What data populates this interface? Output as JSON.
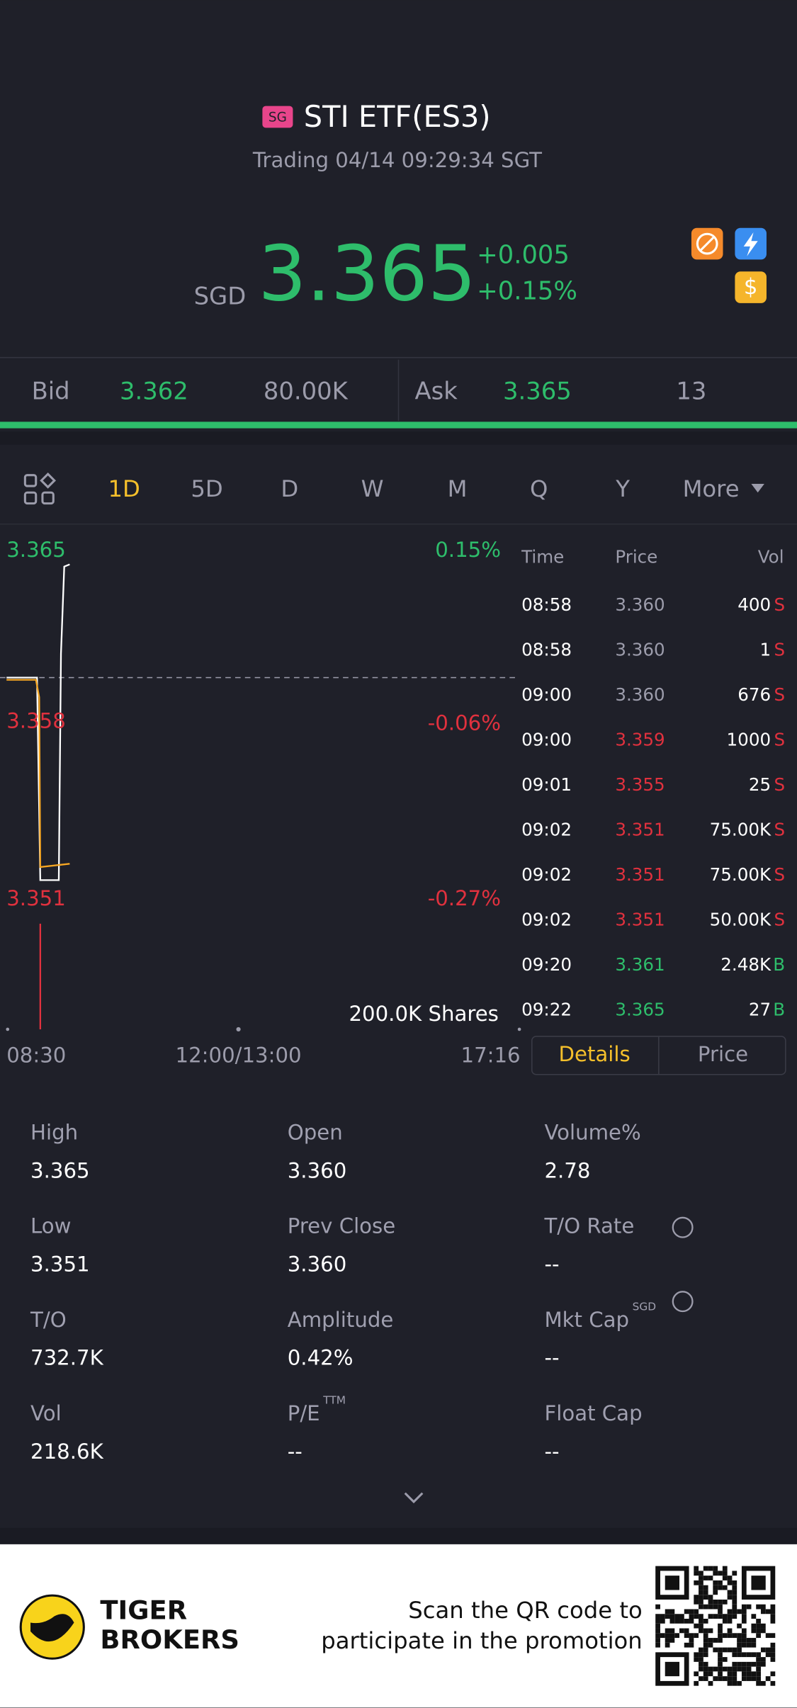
{
  "header": {
    "badge": "SG",
    "title": "STI ETF(ES3)",
    "status": "Trading 04/14 09:29:34 SGT"
  },
  "quote": {
    "currency": "SGD",
    "price": "3.365",
    "change": "+0.005",
    "change_pct": "+0.15%"
  },
  "order_book": {
    "bid_label": "Bid",
    "bid_price": "3.362",
    "bid_size": "80.00K",
    "ask_label": "Ask",
    "ask_price": "3.365",
    "ask_size": "13"
  },
  "periods": [
    "1D",
    "5D",
    "D",
    "W",
    "M",
    "Q",
    "Y",
    "More"
  ],
  "chart": {
    "price_labels": [
      "3.365",
      "3.358",
      "3.351"
    ],
    "pct_labels": [
      "0.15%",
      "-0.06%",
      "-0.27%"
    ],
    "volume_label": "200.0K Shares",
    "time_labels": [
      "08:30",
      "12:00/13:00",
      "17:16"
    ]
  },
  "trades": {
    "headers": [
      "Time",
      "Price",
      "Vol"
    ],
    "rows": [
      [
        "08:58",
        "3.360",
        "400",
        "S"
      ],
      [
        "08:58",
        "3.360",
        "1",
        "S"
      ],
      [
        "09:00",
        "3.360",
        "676",
        "S"
      ],
      [
        "09:00",
        "3.359",
        "1000",
        "S"
      ],
      [
        "09:01",
        "3.355",
        "25",
        "S"
      ],
      [
        "09:02",
        "3.351",
        "75.00K",
        "S"
      ],
      [
        "09:02",
        "3.351",
        "75.00K",
        "S"
      ],
      [
        "09:02",
        "3.351",
        "50.00K",
        "S"
      ],
      [
        "09:20",
        "3.361",
        "2.48K",
        "B"
      ],
      [
        "09:22",
        "3.365",
        "27",
        "B"
      ]
    ]
  },
  "tabs": [
    "Details",
    "Price"
  ],
  "stats": [
    {
      "label": "High",
      "value": "3.365"
    },
    {
      "label": "Open",
      "value": "3.360"
    },
    {
      "label": "Volume%",
      "value": "2.78"
    },
    {
      "label": "Low",
      "value": "3.351"
    },
    {
      "label": "Prev Close",
      "value": "3.360"
    },
    {
      "label": "T/O Rate",
      "value": "--"
    },
    {
      "label": "T/O",
      "value": "732.7K"
    },
    {
      "label": "Amplitude",
      "value": "0.42%"
    },
    {
      "label": "Mkt Cap",
      "sup": "SGD",
      "value": "--"
    },
    {
      "label": "Vol",
      "value": "218.6K"
    },
    {
      "label": "P/E",
      "sup": "TTM",
      "value": "--"
    },
    {
      "label": "Float Cap",
      "value": "--"
    }
  ],
  "footer": {
    "brand_line1": "TIGER",
    "brand_line2": "BROKERS",
    "promo_line1": "Scan the QR code to",
    "promo_line2": "participate in the promotion"
  }
}
